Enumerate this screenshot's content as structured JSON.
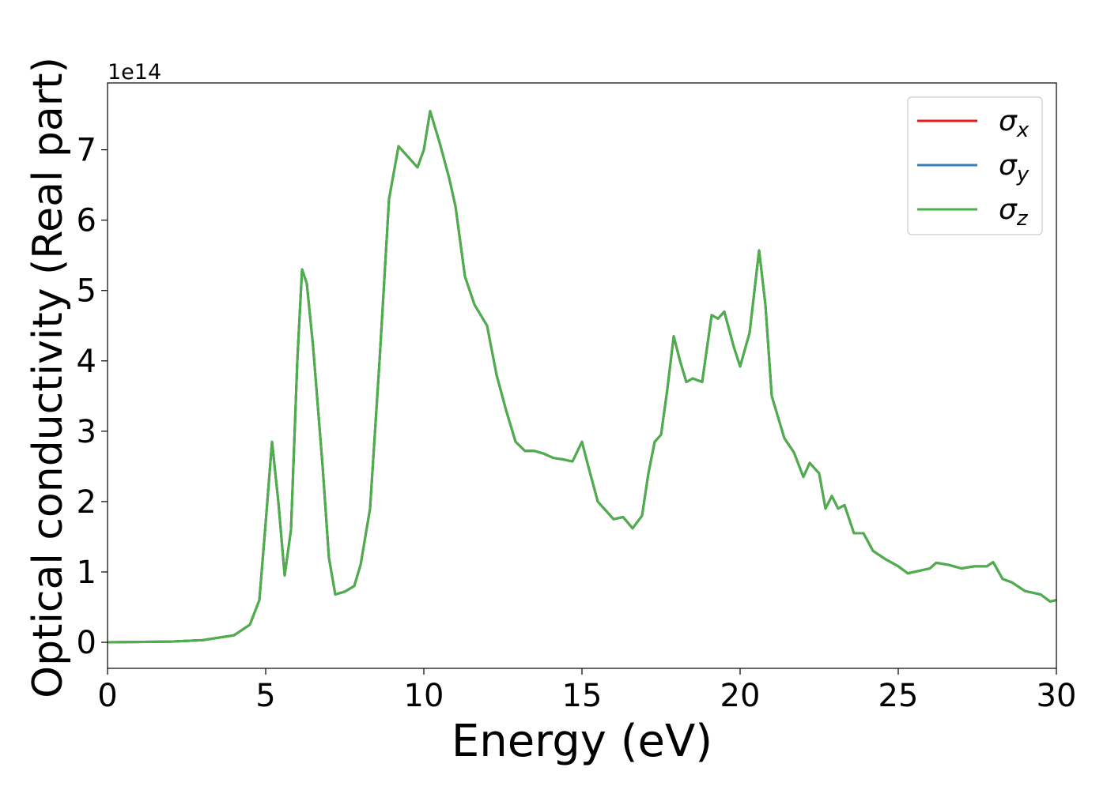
{
  "chart_data": {
    "type": "line",
    "xlabel": "Energy (eV)",
    "ylabel": "Optical conductivity (Real part)",
    "offset_text": "1e14",
    "xlim": [
      0,
      30
    ],
    "ylim": [
      -0.37,
      7.95
    ],
    "xticks": [
      0,
      5,
      10,
      15,
      20,
      25,
      30
    ],
    "yticks": [
      0,
      1,
      2,
      3,
      4,
      5,
      6,
      7
    ],
    "grid": false,
    "legend": "upper right",
    "x": [
      0,
      2,
      3,
      4,
      4.5,
      4.8,
      5.0,
      5.2,
      5.4,
      5.6,
      5.8,
      6.0,
      6.15,
      6.3,
      6.5,
      6.8,
      7.0,
      7.2,
      7.5,
      7.8,
      8.0,
      8.3,
      8.6,
      8.9,
      9.2,
      9.5,
      9.8,
      10.0,
      10.2,
      10.5,
      10.8,
      11.0,
      11.3,
      11.6,
      12.0,
      12.3,
      12.6,
      12.9,
      13.2,
      13.5,
      13.8,
      14.1,
      14.4,
      14.7,
      15.0,
      15.2,
      15.5,
      15.8,
      16.0,
      16.3,
      16.6,
      16.9,
      17.1,
      17.3,
      17.5,
      17.7,
      17.9,
      18.1,
      18.3,
      18.5,
      18.8,
      19.1,
      19.3,
      19.5,
      19.8,
      20.0,
      20.3,
      20.6,
      20.8,
      21.0,
      21.4,
      21.7,
      22.0,
      22.2,
      22.5,
      22.7,
      22.9,
      23.1,
      23.3,
      23.6,
      23.9,
      24.2,
      24.6,
      25.0,
      25.3,
      25.7,
      26.0,
      26.2,
      26.6,
      27.0,
      27.4,
      27.8,
      28.0,
      28.3,
      28.6,
      29.0,
      29.5,
      29.8,
      30.0
    ],
    "series": [
      {
        "name": "σx",
        "color": "#e41a1c",
        "values": [
          0,
          0.01,
          0.03,
          0.1,
          0.25,
          0.6,
          1.7,
          2.85,
          2.0,
          0.95,
          1.6,
          4.0,
          5.3,
          5.1,
          4.2,
          2.5,
          1.2,
          0.68,
          0.72,
          0.8,
          1.1,
          1.9,
          4.0,
          6.3,
          7.05,
          6.9,
          6.75,
          7.0,
          7.55,
          7.1,
          6.6,
          6.2,
          5.2,
          4.8,
          4.5,
          3.8,
          3.3,
          2.85,
          2.72,
          2.72,
          2.68,
          2.62,
          2.6,
          2.57,
          2.85,
          2.5,
          2.0,
          1.85,
          1.75,
          1.78,
          1.62,
          1.8,
          2.4,
          2.85,
          2.95,
          3.6,
          4.35,
          4.0,
          3.7,
          3.75,
          3.7,
          4.65,
          4.6,
          4.7,
          4.2,
          3.92,
          4.4,
          5.57,
          4.8,
          3.5,
          2.9,
          2.7,
          2.35,
          2.55,
          2.4,
          1.9,
          2.08,
          1.9,
          1.95,
          1.55,
          1.55,
          1.3,
          1.18,
          1.08,
          0.98,
          1.02,
          1.05,
          1.13,
          1.1,
          1.05,
          1.08,
          1.08,
          1.14,
          0.9,
          0.85,
          0.73,
          0.68,
          0.58,
          0.6
        ]
      },
      {
        "name": "σy",
        "color": "#377eb8",
        "values": [
          0,
          0.01,
          0.03,
          0.1,
          0.25,
          0.6,
          1.7,
          2.85,
          2.0,
          0.95,
          1.6,
          4.0,
          5.3,
          5.1,
          4.2,
          2.5,
          1.2,
          0.68,
          0.72,
          0.8,
          1.1,
          1.9,
          4.0,
          6.3,
          7.05,
          6.9,
          6.75,
          7.0,
          7.55,
          7.1,
          6.6,
          6.2,
          5.2,
          4.8,
          4.5,
          3.8,
          3.3,
          2.85,
          2.72,
          2.72,
          2.68,
          2.62,
          2.6,
          2.57,
          2.85,
          2.5,
          2.0,
          1.85,
          1.75,
          1.78,
          1.62,
          1.8,
          2.4,
          2.85,
          2.95,
          3.6,
          4.35,
          4.0,
          3.7,
          3.75,
          3.7,
          4.65,
          4.6,
          4.7,
          4.2,
          3.92,
          4.4,
          5.57,
          4.8,
          3.5,
          2.9,
          2.7,
          2.35,
          2.55,
          2.4,
          1.9,
          2.08,
          1.9,
          1.95,
          1.55,
          1.55,
          1.3,
          1.18,
          1.08,
          0.98,
          1.02,
          1.05,
          1.13,
          1.1,
          1.05,
          1.08,
          1.08,
          1.14,
          0.9,
          0.85,
          0.73,
          0.68,
          0.58,
          0.6
        ]
      },
      {
        "name": "σz",
        "color": "#4daf4a",
        "values": [
          0,
          0.01,
          0.03,
          0.1,
          0.25,
          0.6,
          1.7,
          2.85,
          2.0,
          0.95,
          1.6,
          4.0,
          5.3,
          5.1,
          4.2,
          2.5,
          1.2,
          0.68,
          0.72,
          0.8,
          1.1,
          1.9,
          4.0,
          6.3,
          7.05,
          6.9,
          6.75,
          7.0,
          7.55,
          7.1,
          6.6,
          6.2,
          5.2,
          4.8,
          4.5,
          3.8,
          3.3,
          2.85,
          2.72,
          2.72,
          2.68,
          2.62,
          2.6,
          2.57,
          2.85,
          2.5,
          2.0,
          1.85,
          1.75,
          1.78,
          1.62,
          1.8,
          2.4,
          2.85,
          2.95,
          3.6,
          4.35,
          4.0,
          3.7,
          3.75,
          3.7,
          4.65,
          4.6,
          4.7,
          4.2,
          3.92,
          4.4,
          5.57,
          4.8,
          3.5,
          2.9,
          2.7,
          2.35,
          2.55,
          2.4,
          1.9,
          2.08,
          1.9,
          1.95,
          1.55,
          1.55,
          1.3,
          1.18,
          1.08,
          0.98,
          1.02,
          1.05,
          1.13,
          1.1,
          1.05,
          1.08,
          1.08,
          1.14,
          0.9,
          0.85,
          0.73,
          0.68,
          0.58,
          0.6
        ]
      }
    ]
  }
}
